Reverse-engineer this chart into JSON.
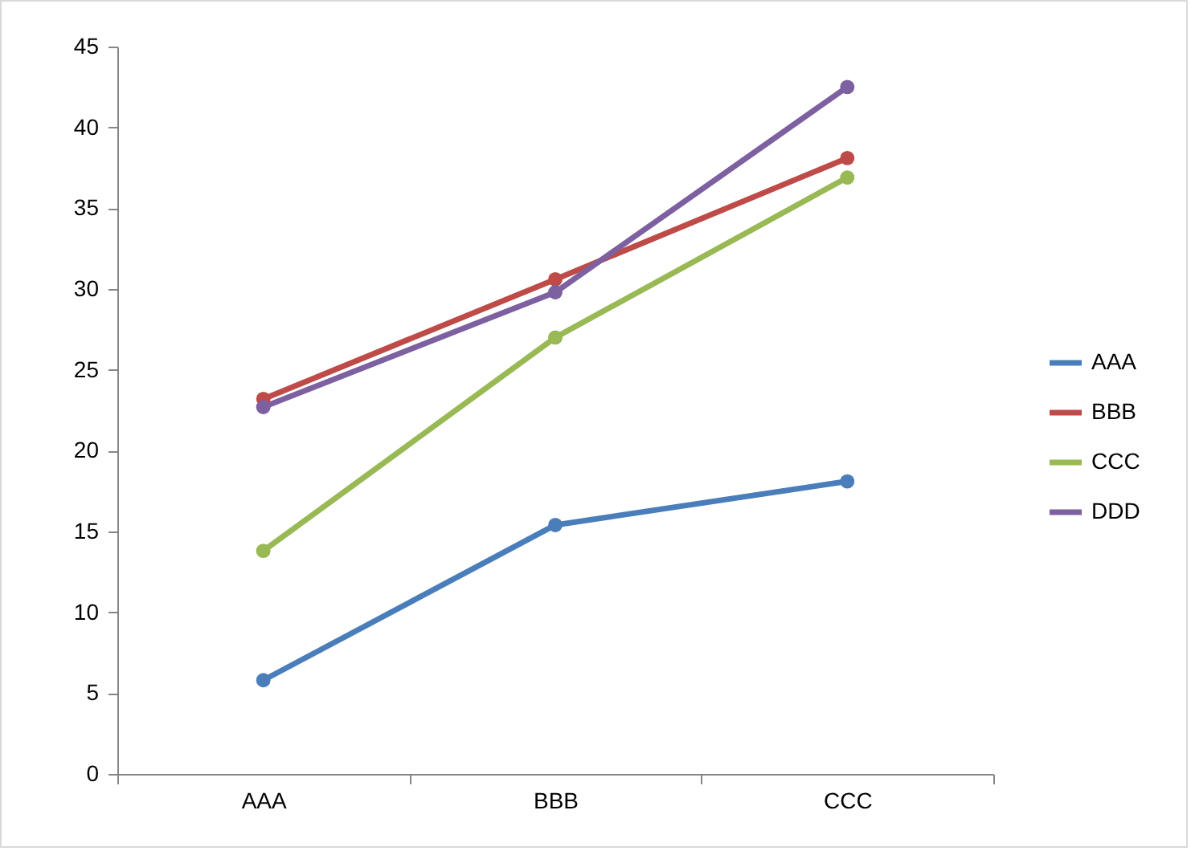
{
  "chart_data": {
    "type": "line",
    "categories": [
      "AAA",
      "BBB",
      "CCC"
    ],
    "series": [
      {
        "name": "AAA",
        "color": "#4a7ebb",
        "values": [
          5.8,
          15.4,
          18.1
        ]
      },
      {
        "name": "BBB",
        "color": "#be4b48",
        "values": [
          23.2,
          30.6,
          38.1
        ]
      },
      {
        "name": "CCC",
        "color": "#98b954",
        "values": [
          13.8,
          27.0,
          36.9
        ]
      },
      {
        "name": "DDD",
        "color": "#7d60a0",
        "values": [
          22.7,
          29.8,
          42.5
        ]
      }
    ],
    "ylim": [
      0,
      45
    ],
    "yticks": [
      0,
      5,
      10,
      15,
      20,
      25,
      30,
      35,
      40,
      45
    ],
    "grid": false,
    "legend": "right",
    "marker": "circle",
    "line_style": "solid"
  }
}
